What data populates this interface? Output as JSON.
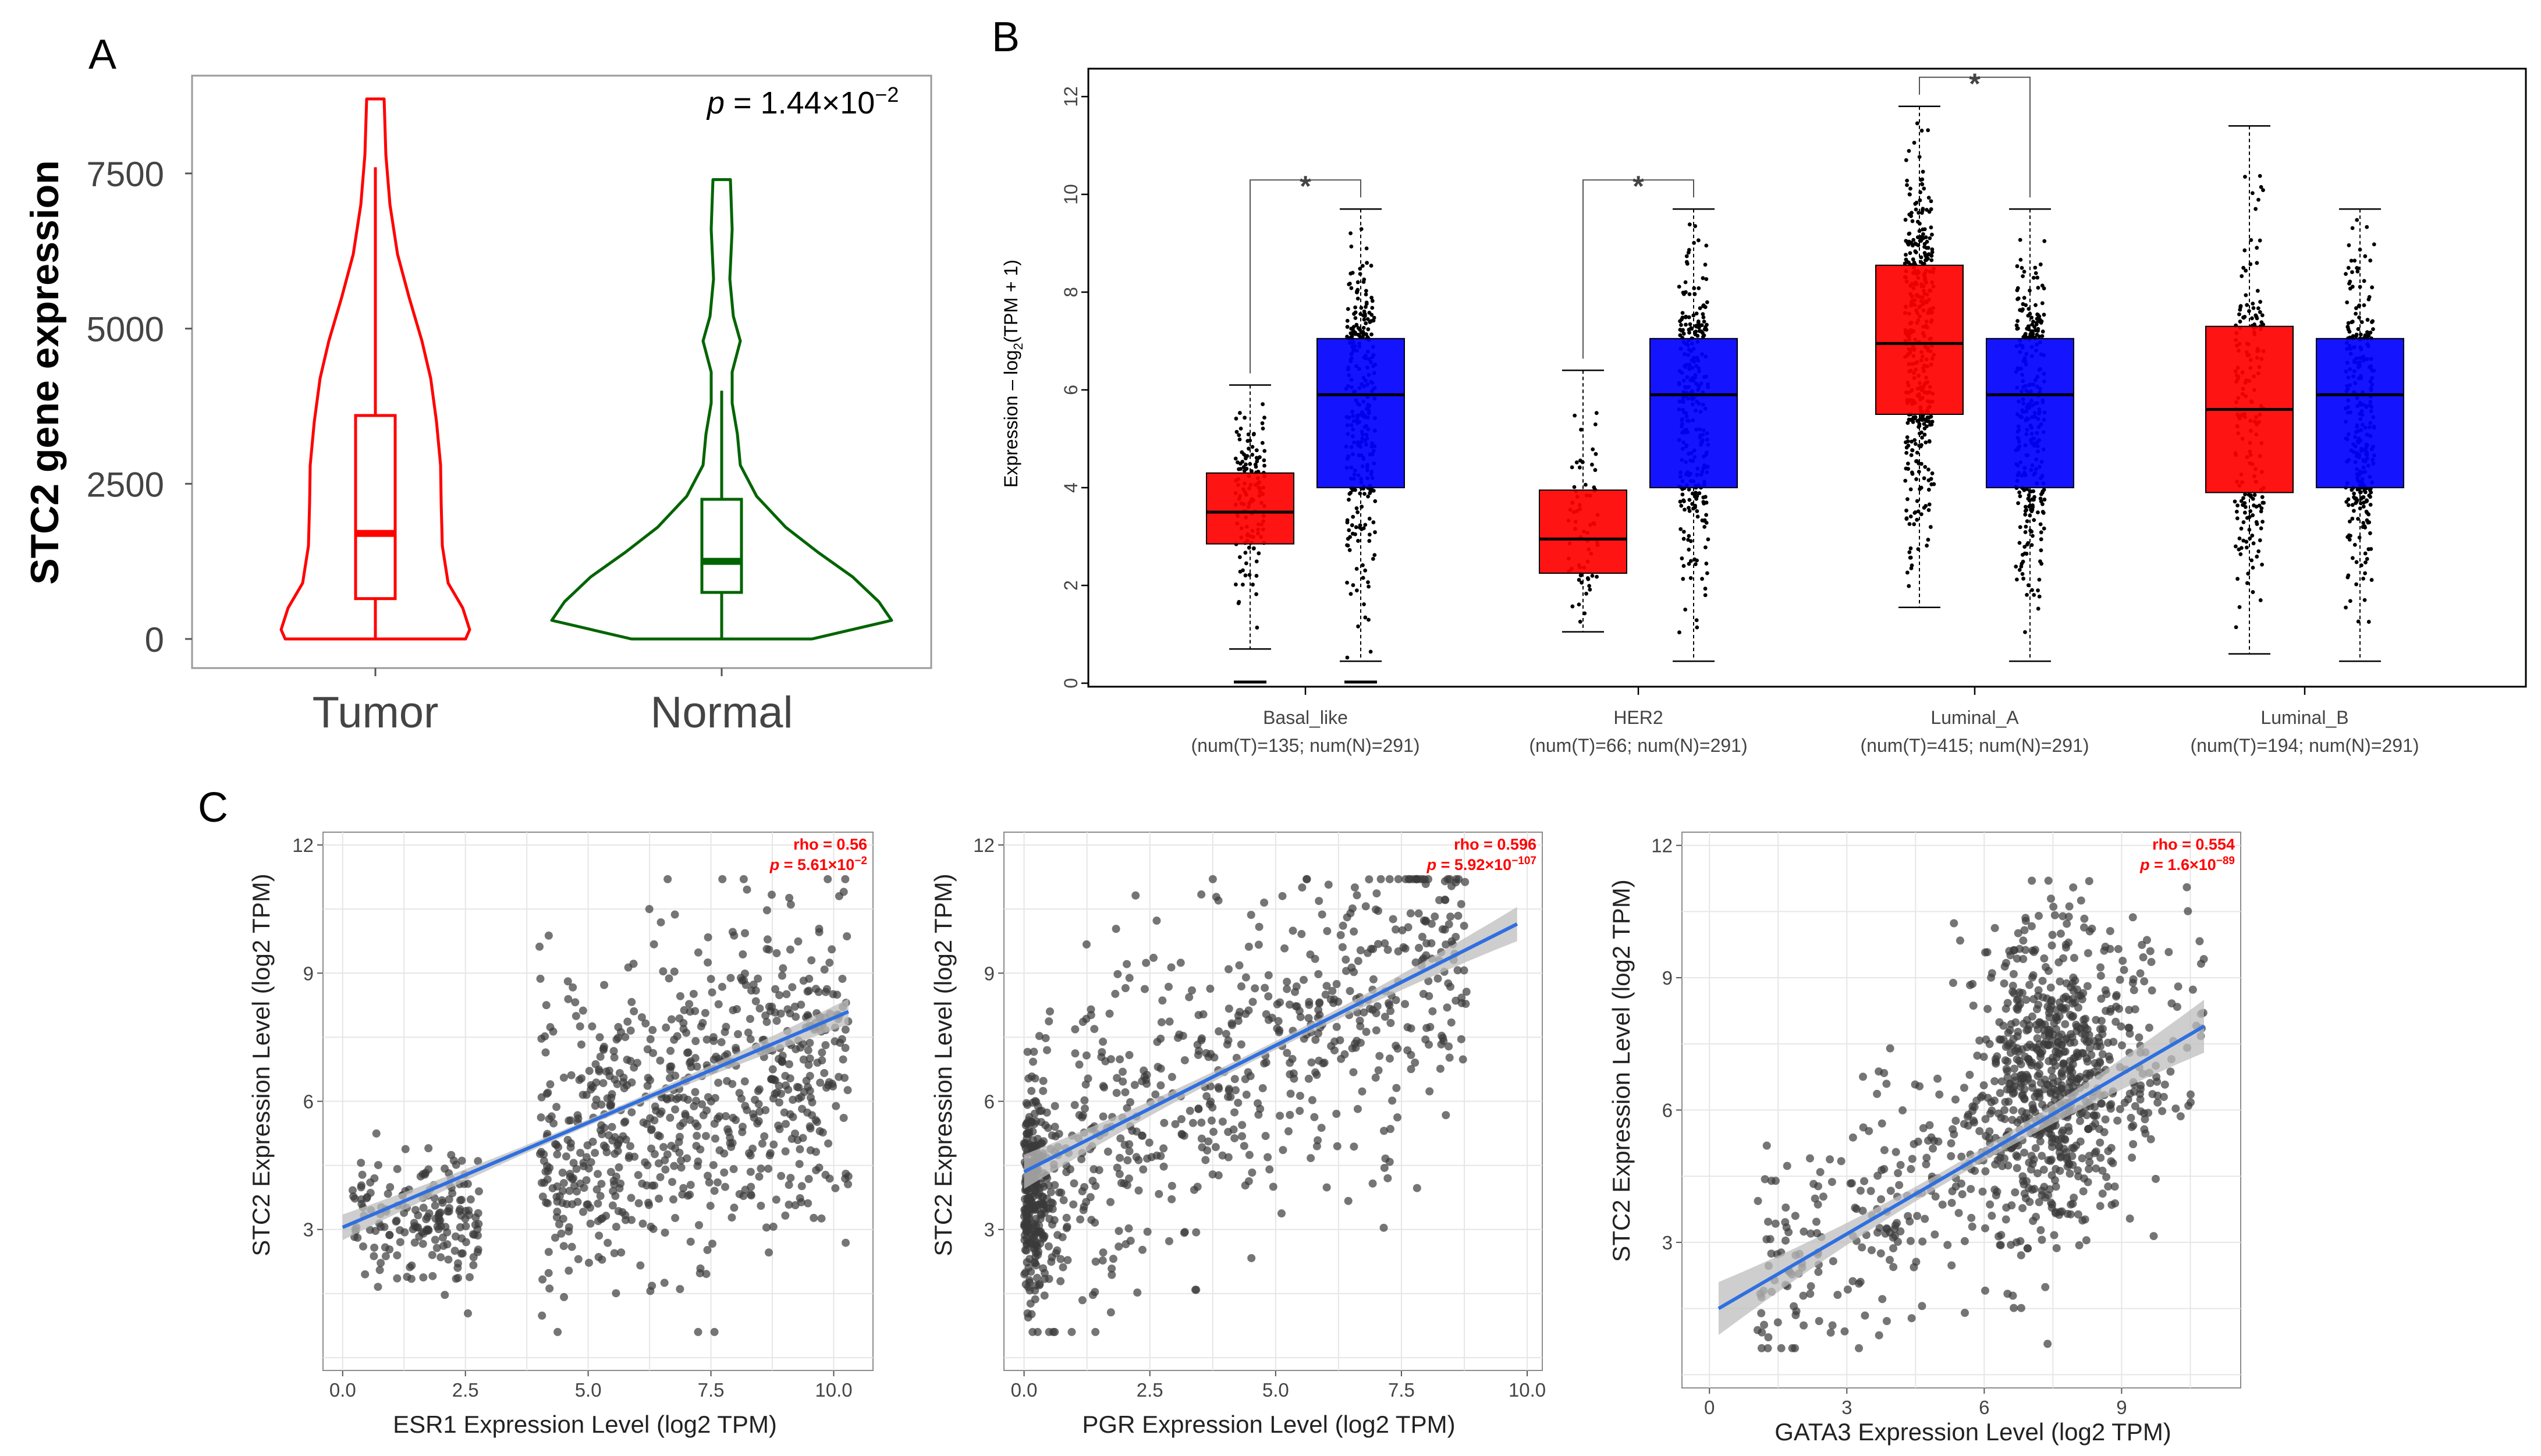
{
  "panels": {
    "a": "A",
    "b": "B",
    "c": "C"
  },
  "colors": {
    "tumor_violin": "#ff0000",
    "normal_violin": "#006400",
    "box_tumor": "#ff0000",
    "box_normal": "#0000ff",
    "star": "#ff0000",
    "reg_line": "#2f6fe0",
    "ci_band": "#bdbdbd",
    "stat_red": "#ff0000",
    "point": "#3a3a3a"
  },
  "chart_data": [
    {
      "id": "A",
      "type": "violin",
      "title": "",
      "ylabel": "STC2 gene expression",
      "xlabel": "",
      "ylim": [
        -200,
        8800
      ],
      "yticks": [
        0,
        2500,
        5000,
        7500
      ],
      "ytick_labels": [
        "0",
        "2500",
        "5000",
        "7500"
      ],
      "annotation": {
        "p_prefix": "p",
        "p_text": " = 1.44×10",
        "p_exp": "−2"
      },
      "groups": [
        {
          "name": "Tumor",
          "min": 0,
          "max": 8700,
          "q1": 650,
          "median": 1700,
          "q3": 3600,
          "whisker_low": 0,
          "whisker_high": 7600
        },
        {
          "name": "Normal",
          "min": 0,
          "max": 7400,
          "q1": 750,
          "median": 1250,
          "q3": 2250,
          "whisker_low": 0,
          "whisker_high": 4000
        }
      ]
    },
    {
      "id": "B",
      "type": "box",
      "ylabel_prefix": "Expression – log",
      "ylabel_sub": "2",
      "ylabel_suffix": "(TPM + 1)",
      "ylim": [
        0,
        12.6
      ],
      "yticks": [
        0,
        2,
        4,
        6,
        8,
        10,
        12
      ],
      "ytick_labels": [
        "0",
        "2",
        "4",
        "6",
        "8",
        "10",
        "12"
      ],
      "significance_marker": "*",
      "categories": [
        {
          "name": "Basal_like",
          "n_label": "(num(T)=135; num(N)=291)",
          "significant": true,
          "tumor": {
            "q1": 2.85,
            "median": 3.5,
            "q3": 4.3,
            "lo": 0.7,
            "hi": 6.1,
            "n_points": 135
          },
          "normal": {
            "q1": 4.0,
            "median": 5.9,
            "q3": 7.05,
            "lo": 0.45,
            "hi": 9.7,
            "n_points": 291
          }
        },
        {
          "name": "HER2",
          "n_label": "(num(T)=66; num(N)=291)",
          "significant": true,
          "tumor": {
            "q1": 2.25,
            "median": 2.95,
            "q3": 3.95,
            "lo": 1.05,
            "hi": 6.4,
            "n_points": 66
          },
          "normal": {
            "q1": 4.0,
            "median": 5.9,
            "q3": 7.05,
            "lo": 0.45,
            "hi": 9.7,
            "n_points": 291
          }
        },
        {
          "name": "Luminal_A",
          "n_label": "(num(T)=415; num(N)=291)",
          "significant": true,
          "tumor": {
            "q1": 5.5,
            "median": 6.95,
            "q3": 8.55,
            "lo": 1.55,
            "hi": 11.8,
            "n_points": 415
          },
          "normal": {
            "q1": 4.0,
            "median": 5.9,
            "q3": 7.05,
            "lo": 0.45,
            "hi": 9.7,
            "n_points": 291
          }
        },
        {
          "name": "Luminal_B",
          "n_label": "(num(T)=194; num(N)=291)",
          "significant": false,
          "tumor": {
            "q1": 3.9,
            "median": 5.6,
            "q3": 7.3,
            "lo": 0.6,
            "hi": 11.4,
            "n_points": 194
          },
          "normal": {
            "q1": 4.0,
            "median": 5.9,
            "q3": 7.05,
            "lo": 0.45,
            "hi": 9.7,
            "n_points": 291
          }
        }
      ]
    },
    {
      "id": "C1",
      "type": "scatter",
      "xlabel": "ESR1 Expression Level (log2 TPM)",
      "ylabel": "STC2 Expression Level (log2 TPM)",
      "xlim": [
        -0.4,
        10.8
      ],
      "ylim": [
        -0.3,
        12.3
      ],
      "xticks": [
        0,
        2.5,
        5,
        7.5,
        10
      ],
      "xtick_labels": [
        "0.0",
        "2.5",
        "5.0",
        "7.5",
        "10.0"
      ],
      "yticks": [
        3,
        6,
        9,
        12
      ],
      "ytick_labels": [
        "3",
        "6",
        "9",
        "12"
      ],
      "rho_text": "rho = 0.56",
      "p_prefix": "p",
      "p_text": " = 5.61×10",
      "p_exp": "−2",
      "fit": {
        "x0": 0,
        "y0": 3.05,
        "x1": 10.3,
        "y1": 8.1,
        "ci": 0.15
      }
    },
    {
      "id": "C2",
      "type": "scatter",
      "xlabel": "PGR Expression Level (log2 TPM)",
      "ylabel": "STC2 Expression Level (log2 TPM)",
      "xlim": [
        -0.4,
        10.3
      ],
      "ylim": [
        -0.3,
        12.3
      ],
      "xticks": [
        0,
        2.5,
        5,
        7.5,
        10
      ],
      "xtick_labels": [
        "0.0",
        "2.5",
        "5.0",
        "7.5",
        "10.0"
      ],
      "yticks": [
        3,
        6,
        9,
        12
      ],
      "ytick_labels": [
        "3",
        "6",
        "9",
        "12"
      ],
      "rho_text": "rho = 0.596",
      "p_prefix": "p",
      "p_text": " = 5.92×10",
      "p_exp": "−107",
      "fit": {
        "x0": 0,
        "y0": 4.35,
        "x1": 9.8,
        "y1": 10.15,
        "ci": 0.2
      }
    },
    {
      "id": "C3",
      "type": "scatter",
      "xlabel": "GATA3 Expression Level (log2 TPM)",
      "ylabel": "STC2 Expression Level (log2 TPM)",
      "xlim": [
        -0.6,
        11.6
      ],
      "ylim": [
        -0.3,
        12.3
      ],
      "xticks": [
        0,
        3,
        6,
        9
      ],
      "xtick_labels": [
        "0",
        "3",
        "6",
        "9"
      ],
      "yticks": [
        3,
        6,
        9,
        12
      ],
      "ytick_labels": [
        "3",
        "6",
        "9",
        "12"
      ],
      "rho_text": "rho = 0.554",
      "p_prefix": "p",
      "p_text": " = 1.6×10",
      "p_exp": "−89",
      "fit": {
        "x0": 0.2,
        "y0": 1.5,
        "x1": 10.8,
        "y1": 7.9,
        "ci": 0.3
      }
    }
  ]
}
